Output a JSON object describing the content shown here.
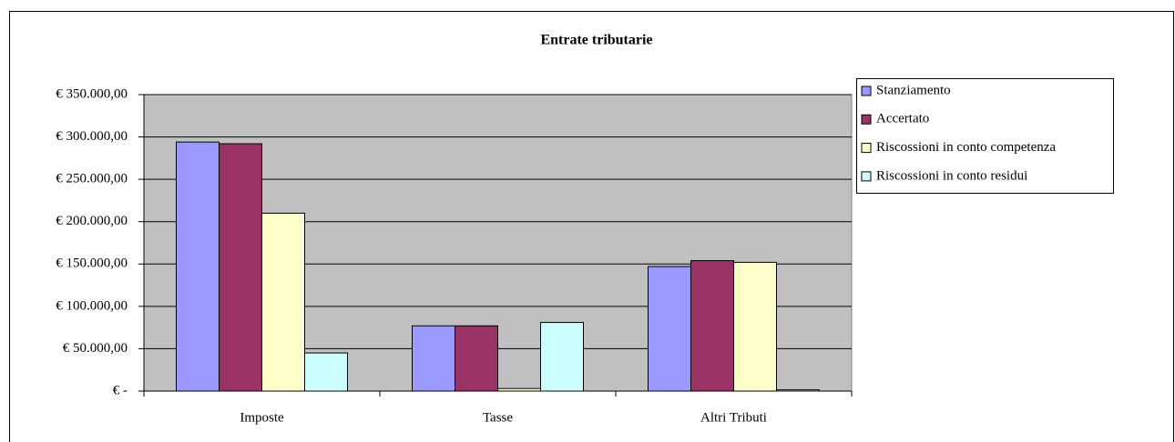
{
  "chart_data": {
    "type": "bar",
    "title": "Entrate tributarie",
    "categories": [
      "Imposte",
      "Tasse",
      "Altri Tributi"
    ],
    "series": [
      {
        "name": "Stanziamento",
        "color": "#9999ff",
        "values": [
          294000,
          77000,
          147000
        ]
      },
      {
        "name": "Accertato",
        "color": "#993366",
        "values": [
          292000,
          77000,
          154000
        ]
      },
      {
        "name": "Riscossioni in conto competenza",
        "color": "#ffffcc",
        "values": [
          210000,
          3000,
          152000
        ]
      },
      {
        "name": "Riscossioni in conto residui",
        "color": "#ccffff",
        "values": [
          45000,
          81000,
          1500
        ]
      }
    ],
    "ylim": [
      0,
      350000
    ],
    "yticks": [
      {
        "value": 0,
        "label": "€ -"
      },
      {
        "value": 50000,
        "label": "€ 50.000,00"
      },
      {
        "value": 100000,
        "label": "€ 100.000,00"
      },
      {
        "value": 150000,
        "label": "€ 150.000,00"
      },
      {
        "value": 200000,
        "label": "€ 200.000,00"
      },
      {
        "value": 250000,
        "label": "€ 250.000,00"
      },
      {
        "value": 300000,
        "label": "€ 300.000,00"
      },
      {
        "value": 350000,
        "label": "€ 350.000,00"
      }
    ],
    "grid": true,
    "legend": "right",
    "plot_background": "#c0c0c0"
  }
}
